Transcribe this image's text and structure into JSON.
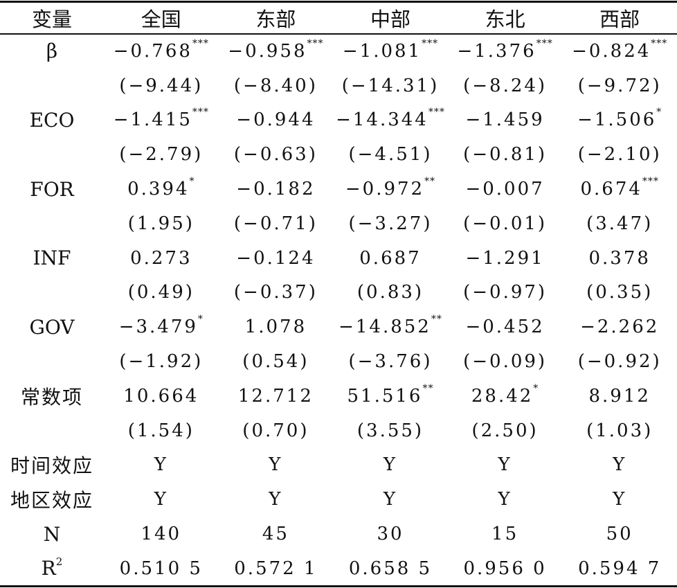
{
  "header": [
    "变量",
    "全国",
    "东部",
    "中部",
    "东北",
    "西部"
  ],
  "rows": [
    {
      "label": "β",
      "cells": [
        {
          "v": "−0.768",
          "s": "***"
        },
        {
          "v": "−0.958",
          "s": "***"
        },
        {
          "v": "−1.081",
          "s": "***"
        },
        {
          "v": "−1.376",
          "s": "***"
        },
        {
          "v": "−0.824",
          "s": "***"
        }
      ]
    },
    {
      "label": "",
      "cells": [
        {
          "v": "(−9.44)"
        },
        {
          "v": "(−8.40)"
        },
        {
          "v": "(−14.31)"
        },
        {
          "v": "(−8.24)"
        },
        {
          "v": "(−9.72)"
        }
      ]
    },
    {
      "label": "ECO",
      "cells": [
        {
          "v": "−1.415",
          "s": "***"
        },
        {
          "v": "−0.944"
        },
        {
          "v": "−14.344",
          "s": "***"
        },
        {
          "v": "−1.459"
        },
        {
          "v": "−1.506",
          "s": "*"
        }
      ]
    },
    {
      "label": "",
      "cells": [
        {
          "v": "(−2.79)"
        },
        {
          "v": "(−0.63)"
        },
        {
          "v": "(−4.51)"
        },
        {
          "v": "(−0.81)"
        },
        {
          "v": "(−2.10)"
        }
      ]
    },
    {
      "label": "FOR",
      "cells": [
        {
          "v": "0.394",
          "s": "*"
        },
        {
          "v": "−0.182"
        },
        {
          "v": "−0.972",
          "s": "**"
        },
        {
          "v": "−0.007"
        },
        {
          "v": "0.674",
          "s": "***"
        }
      ]
    },
    {
      "label": "",
      "cells": [
        {
          "v": "(1.95)"
        },
        {
          "v": "(−0.71)"
        },
        {
          "v": "(−3.27)"
        },
        {
          "v": "(−0.01)"
        },
        {
          "v": "(3.47)"
        }
      ]
    },
    {
      "label": "INF",
      "cells": [
        {
          "v": "0.273"
        },
        {
          "v": "−0.124"
        },
        {
          "v": "0.687"
        },
        {
          "v": "−1.291"
        },
        {
          "v": "0.378"
        }
      ]
    },
    {
      "label": "",
      "cells": [
        {
          "v": "(0.49)"
        },
        {
          "v": "(−0.37)"
        },
        {
          "v": "(0.83)"
        },
        {
          "v": "(−0.97)"
        },
        {
          "v": "(0.35)"
        }
      ]
    },
    {
      "label": "GOV",
      "cells": [
        {
          "v": "−3.479",
          "s": "*"
        },
        {
          "v": "1.078"
        },
        {
          "v": "−14.852",
          "s": "**"
        },
        {
          "v": "−0.452"
        },
        {
          "v": "−2.262"
        }
      ]
    },
    {
      "label": "",
      "cells": [
        {
          "v": "(−1.92)"
        },
        {
          "v": "(0.54)"
        },
        {
          "v": "(−3.76)"
        },
        {
          "v": "(−0.09)"
        },
        {
          "v": "(−0.92)"
        }
      ]
    },
    {
      "label": "常数项",
      "cjk": true,
      "cells": [
        {
          "v": "10.664"
        },
        {
          "v": "12.712"
        },
        {
          "v": "51.516",
          "s": "**"
        },
        {
          "v": "28.42",
          "s": "*"
        },
        {
          "v": "8.912"
        }
      ]
    },
    {
      "label": "",
      "cells": [
        {
          "v": "(1.54)"
        },
        {
          "v": "(0.70)"
        },
        {
          "v": "(3.55)"
        },
        {
          "v": "(2.50)"
        },
        {
          "v": "(1.03)"
        }
      ]
    },
    {
      "label": "时间效应",
      "cjk": true,
      "cells": [
        {
          "v": "Y"
        },
        {
          "v": "Y"
        },
        {
          "v": "Y"
        },
        {
          "v": "Y"
        },
        {
          "v": "Y"
        }
      ]
    },
    {
      "label": "地区效应",
      "cjk": true,
      "cells": [
        {
          "v": "Y"
        },
        {
          "v": "Y"
        },
        {
          "v": "Y"
        },
        {
          "v": "Y"
        },
        {
          "v": "Y"
        }
      ]
    },
    {
      "label": "N",
      "cells": [
        {
          "v": "140"
        },
        {
          "v": "45"
        },
        {
          "v": "30"
        },
        {
          "v": "15"
        },
        {
          "v": "50"
        }
      ]
    },
    {
      "label": "R",
      "labelSup": "2",
      "cells": [
        {
          "v": "0.510 5"
        },
        {
          "v": "0.572 1"
        },
        {
          "v": "0.658 5"
        },
        {
          "v": "0.956 0"
        },
        {
          "v": "0.594 7"
        }
      ]
    }
  ]
}
